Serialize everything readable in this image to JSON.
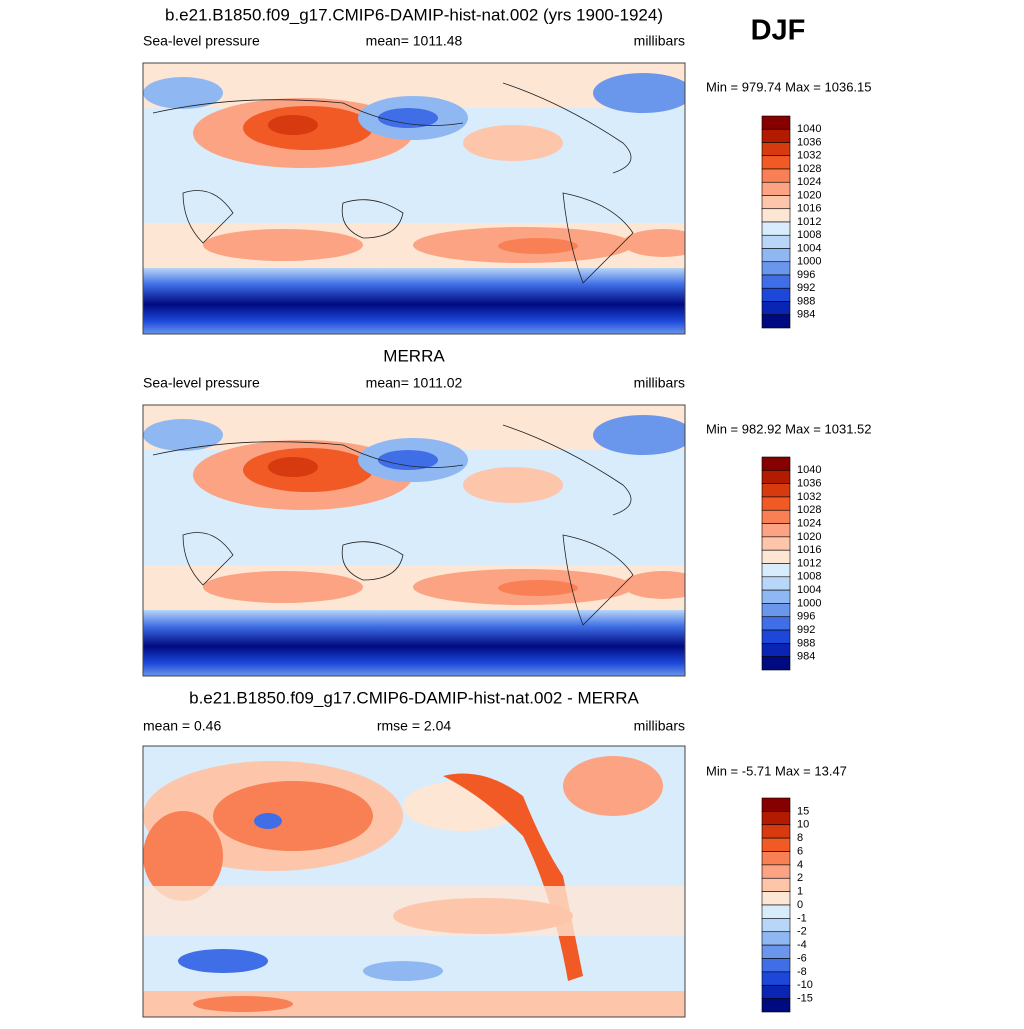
{
  "season": "DJF",
  "palette": [
    "#870000",
    "#b21b00",
    "#d63a0e",
    "#f15a24",
    "#f88054",
    "#fba382",
    "#fdc5aa",
    "#fee6d4",
    "#d9ecfb",
    "#b8d6f7",
    "#8fb8f2",
    "#6a96ec",
    "#3f6ee6",
    "#1c47d9",
    "#0a25b4",
    "#000a80"
  ],
  "panels": [
    {
      "title": "b.e21.B1850.f09_g17.CMIP6-DAMIP-hist-nat.002 (yrs 1900-1924)",
      "left": "Sea-level pressure",
      "center": "mean= 1011.48",
      "right": "millibars",
      "minmax": "Min = 979.74 Max = 1036.15",
      "colorbar_labels": [
        "1040",
        "1036",
        "1032",
        "1028",
        "1024",
        "1020",
        "1016",
        "1012",
        "1008",
        "1004",
        "1000",
        "996",
        "992",
        "988",
        "984"
      ]
    },
    {
      "title": "MERRA",
      "left": "Sea-level pressure",
      "center": "mean= 1011.02",
      "right": "millibars",
      "minmax": "Min = 982.92 Max = 1031.52",
      "colorbar_labels": [
        "1040",
        "1036",
        "1032",
        "1028",
        "1024",
        "1020",
        "1016",
        "1012",
        "1008",
        "1004",
        "1000",
        "996",
        "992",
        "988",
        "984"
      ]
    },
    {
      "title": "b.e21.B1850.f09_g17.CMIP6-DAMIP-hist-nat.002 - MERRA",
      "left": "mean =   0.46",
      "center": "rmse =   2.04",
      "right": "millibars",
      "minmax": "Min =  -5.71 Max =  13.47",
      "colorbar_labels": [
        "15",
        "10",
        "8",
        "6",
        "4",
        "2",
        "1",
        "0",
        "-1",
        "-2",
        "-4",
        "-6",
        "-8",
        "-10",
        "-15"
      ]
    }
  ]
}
